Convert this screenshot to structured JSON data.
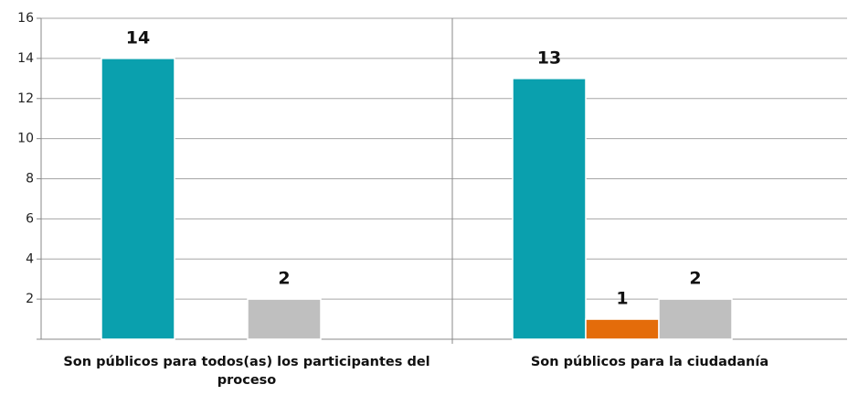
{
  "chart_data": {
    "type": "bar",
    "categories": [
      "Son públicos para todos(as) los participantes del proceso",
      "Son públicos para la ciudadanía"
    ],
    "series": [
      {
        "color": "#0aa0ae",
        "values": [
          14,
          13
        ]
      },
      {
        "color": "#e46c0a",
        "values": [
          null,
          1
        ]
      },
      {
        "color": "#bfbfbf",
        "values": [
          2,
          2
        ]
      }
    ],
    "ylim": [
      0,
      16
    ],
    "yticks": [
      2,
      4,
      6,
      8,
      10,
      12,
      14,
      16
    ],
    "grid": true
  }
}
